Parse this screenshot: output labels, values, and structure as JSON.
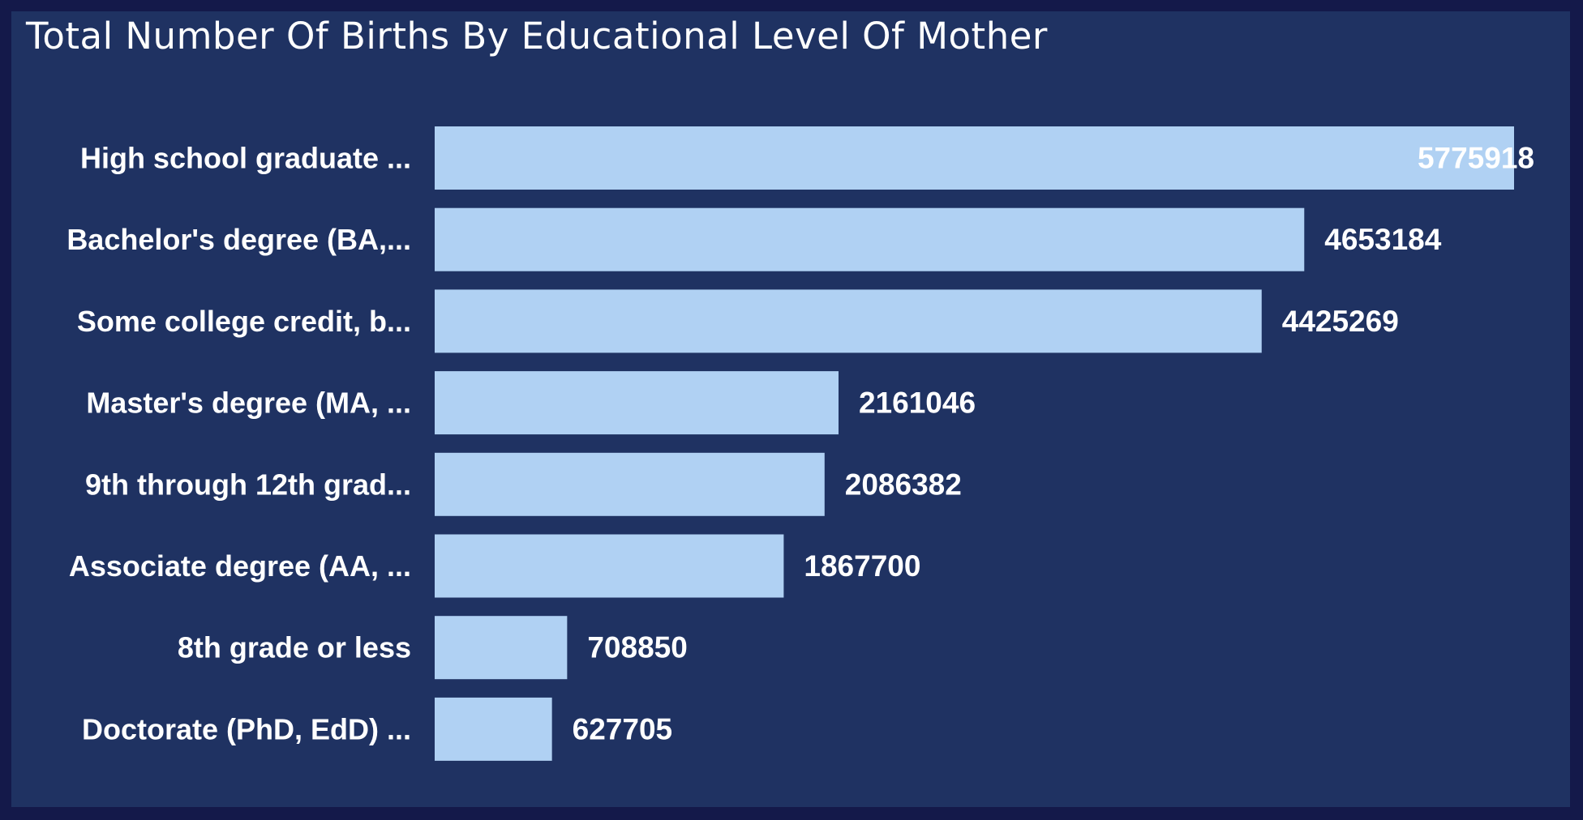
{
  "chart_data": {
    "type": "bar",
    "orientation": "horizontal",
    "title": "Total Number Of Births By Educational Level Of Mother",
    "categories": [
      "High school graduate ...",
      "Bachelor's degree (BA,...",
      "Some college credit, b...",
      "Master's degree (MA, ...",
      "9th through 12th grad...",
      "Associate degree (AA, ...",
      "8th grade or less",
      "Doctorate (PhD, EdD) ..."
    ],
    "values": [
      5775918,
      4653184,
      4425269,
      2161046,
      2086382,
      1867700,
      708850,
      627705
    ],
    "data_labels": [
      "5775918",
      "4653184",
      "4425269",
      "2161046",
      "2086382",
      "1867700",
      "708850",
      "627705"
    ],
    "xlim": [
      0,
      5775918
    ],
    "grid": false,
    "legend": "none",
    "colors": {
      "bar": "#b0d1f3",
      "background": "#1f3262",
      "border": "#14194a",
      "text": "#ffffff"
    }
  }
}
